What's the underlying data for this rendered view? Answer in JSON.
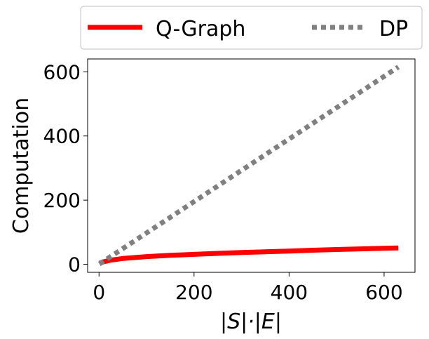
{
  "chart_data": {
    "type": "line",
    "xlabel": "|S|·|E|",
    "ylabel": "Computation",
    "xlim": [
      -24,
      665
    ],
    "ylim": [
      -25,
      640
    ],
    "xticks": [
      0,
      200,
      400,
      600
    ],
    "yticks": [
      0,
      200,
      400,
      600
    ],
    "legend": {
      "placement": "top, above plot",
      "columns": 2
    },
    "series": [
      {
        "name": "Q-Graph",
        "style": "solid",
        "color": "#ff0000",
        "x": [
          1,
          10,
          25,
          50,
          100,
          150,
          200,
          250,
          300,
          350,
          400,
          450,
          500,
          550,
          600,
          630
        ],
        "y": [
          3,
          8,
          13,
          18,
          24,
          28,
          31,
          34,
          37,
          39,
          41,
          44,
          46,
          48,
          50,
          51
        ]
      },
      {
        "name": "DP",
        "style": "dotted",
        "color": "#808080",
        "x": [
          1,
          630
        ],
        "y": [
          1,
          615
        ]
      }
    ]
  }
}
